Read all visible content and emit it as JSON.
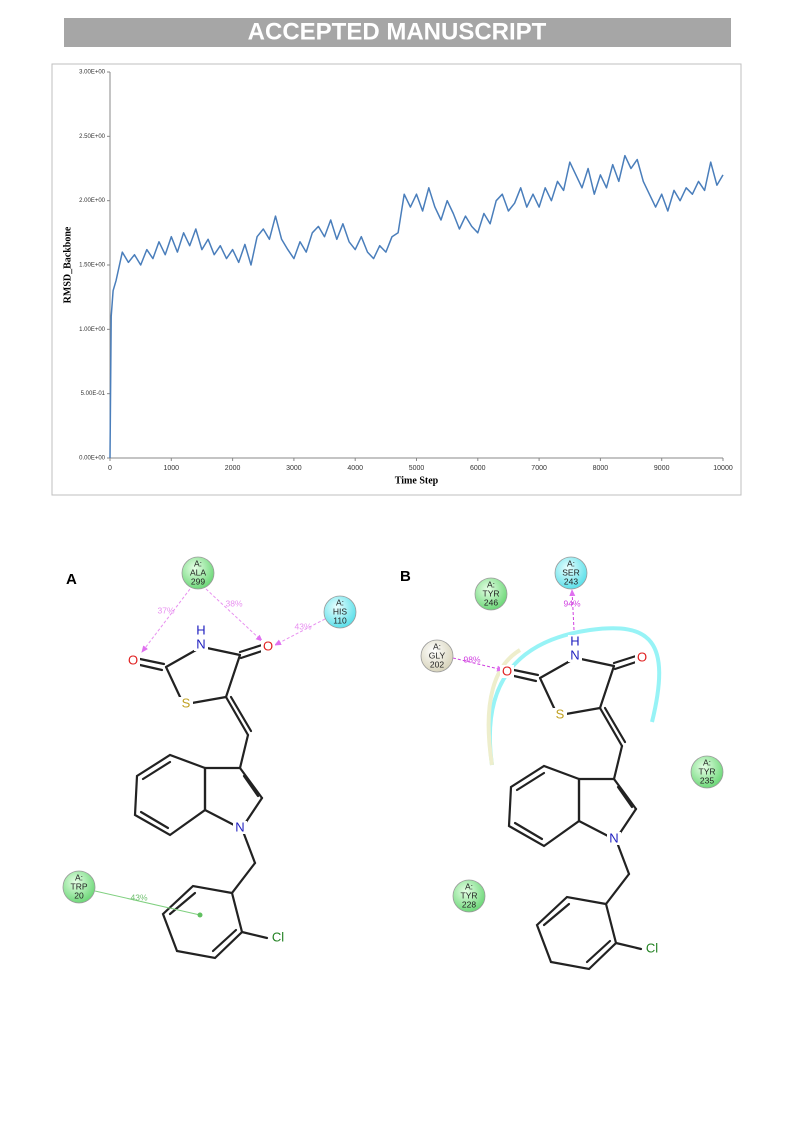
{
  "header": {
    "title": "ACCEPTED MANUSCRIPT"
  },
  "chart_data": {
    "type": "line",
    "xlabel": "Time Step",
    "ylabel": "RMSD_Backbone",
    "color": "#4a7ebb",
    "x": [
      0,
      20,
      50,
      100,
      200,
      300,
      400,
      500,
      600,
      700,
      800,
      900,
      1000,
      1100,
      1200,
      1300,
      1400,
      1500,
      1600,
      1700,
      1800,
      1900,
      2000,
      2100,
      2200,
      2300,
      2400,
      2500,
      2600,
      2700,
      2800,
      2900,
      3000,
      3100,
      3200,
      3300,
      3400,
      3500,
      3600,
      3700,
      3800,
      3900,
      4000,
      4100,
      4200,
      4300,
      4400,
      4500,
      4600,
      4700,
      4800,
      4900,
      5000,
      5100,
      5200,
      5300,
      5400,
      5500,
      5600,
      5700,
      5800,
      5900,
      6000,
      6100,
      6200,
      6300,
      6400,
      6500,
      6600,
      6700,
      6800,
      6900,
      7000,
      7100,
      7200,
      7300,
      7400,
      7500,
      7600,
      7700,
      7800,
      7900,
      8000,
      8100,
      8200,
      8300,
      8400,
      8500,
      8600,
      8700,
      8800,
      8900,
      9000,
      9100,
      9200,
      9300,
      9400,
      9500,
      9600,
      9700,
      9800,
      9900,
      10000
    ],
    "values": [
      0,
      1.1,
      1.3,
      1.38,
      1.6,
      1.52,
      1.58,
      1.5,
      1.62,
      1.55,
      1.68,
      1.58,
      1.72,
      1.6,
      1.75,
      1.65,
      1.78,
      1.62,
      1.7,
      1.58,
      1.65,
      1.55,
      1.62,
      1.52,
      1.66,
      1.5,
      1.72,
      1.78,
      1.7,
      1.88,
      1.7,
      1.62,
      1.55,
      1.68,
      1.6,
      1.75,
      1.8,
      1.72,
      1.85,
      1.7,
      1.82,
      1.68,
      1.62,
      1.72,
      1.6,
      1.55,
      1.65,
      1.6,
      1.72,
      1.75,
      2.05,
      1.95,
      2.05,
      1.92,
      2.1,
      1.95,
      1.85,
      2.0,
      1.9,
      1.78,
      1.88,
      1.8,
      1.75,
      1.9,
      1.82,
      2.0,
      2.05,
      1.92,
      1.98,
      2.1,
      1.95,
      2.05,
      1.95,
      2.1,
      2.0,
      2.15,
      2.08,
      2.3,
      2.2,
      2.1,
      2.25,
      2.05,
      2.2,
      2.1,
      2.28,
      2.15,
      2.35,
      2.25,
      2.32,
      2.15,
      2.05,
      1.95,
      2.05,
      1.92,
      2.08,
      2.0,
      2.1,
      2.05,
      2.15,
      2.08,
      2.3,
      2.12,
      2.2
    ],
    "xlim": [
      0,
      10000
    ],
    "xticks": [
      0,
      1000,
      2000,
      3000,
      4000,
      5000,
      6000,
      7000,
      8000,
      9000,
      10000
    ],
    "ylim": [
      0,
      3
    ],
    "yticks": [
      {
        "value": 0,
        "label": "0.00E+00"
      },
      {
        "value": 0.5,
        "label": "5.00E-01"
      },
      {
        "value": 1,
        "label": "1.00E+00"
      },
      {
        "value": 1.5,
        "label": "1.50E+00"
      },
      {
        "value": 2,
        "label": "2.00E+00"
      },
      {
        "value": 2.5,
        "label": "2.50E+00"
      },
      {
        "value": 3,
        "label": "3.00E+00"
      }
    ],
    "grid": false
  },
  "figure": {
    "panels": [
      {
        "label": "A",
        "residues": [
          {
            "chain": "A:",
            "name": "ALA",
            "number": "299"
          },
          {
            "chain": "A:",
            "name": "HIS",
            "number": "110"
          },
          {
            "chain": "A:",
            "name": "TRP",
            "number": "20"
          }
        ],
        "interactions": [
          "37%",
          "38%",
          "43%",
          "43%"
        ],
        "atoms": [
          "H",
          "N",
          "O",
          "O",
          "S",
          "N",
          "Cl"
        ]
      },
      {
        "label": "B",
        "residues": [
          {
            "chain": "A:",
            "name": "GLY",
            "number": "202"
          },
          {
            "chain": "A:",
            "name": "TYR",
            "number": "246"
          },
          {
            "chain": "A:",
            "name": "SER",
            "number": "243"
          },
          {
            "chain": "A:",
            "name": "TYR",
            "number": "235"
          },
          {
            "chain": "A:",
            "name": "TYR",
            "number": "228"
          }
        ],
        "interactions": [
          "98%",
          "94%"
        ],
        "atoms": [
          "H",
          "N",
          "O",
          "O",
          "S",
          "N",
          "Cl"
        ]
      }
    ]
  }
}
